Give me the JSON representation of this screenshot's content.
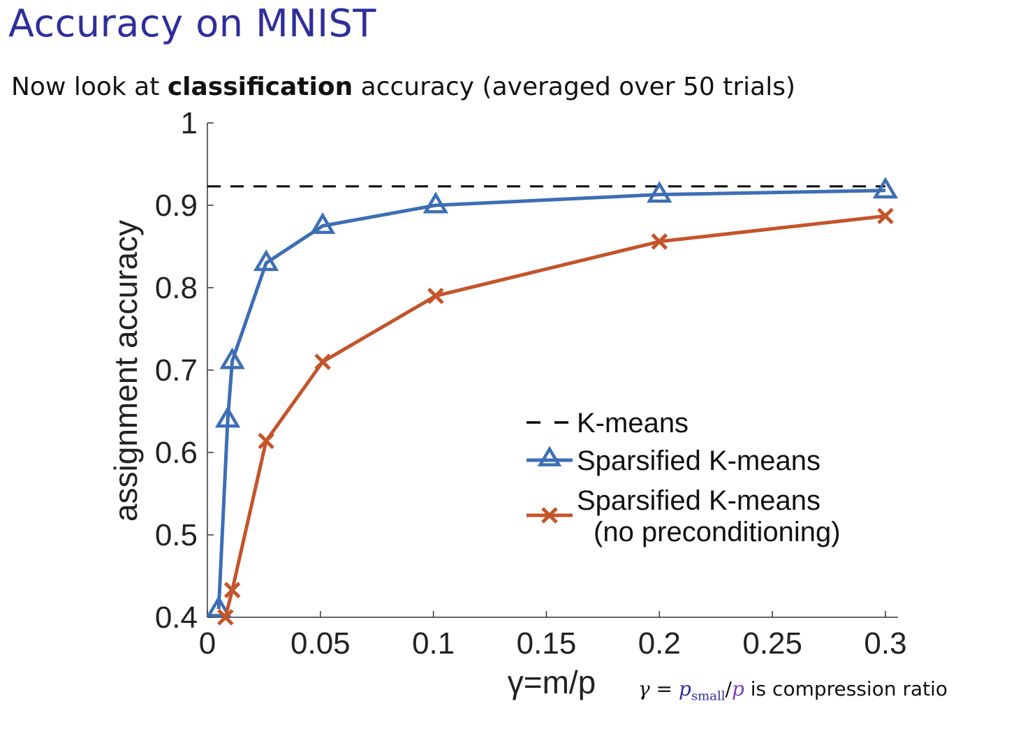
{
  "slide": {
    "title": "Accuracy on MNIST",
    "subtitle_pre": "Now look at ",
    "subtitle_bold": "classification",
    "subtitle_post": " accuracy (averaged over 50 trials)",
    "note_gamma": "γ",
    "note_eq": " = ",
    "note_p": "p",
    "note_sub": "small",
    "note_slash": "/",
    "note_p2": "p",
    "note_text": " is compression ratio"
  },
  "chart_data": {
    "type": "line",
    "xlabel": "γ=m/p",
    "ylabel": "assignment accuracy",
    "xlim": [
      0,
      0.3
    ],
    "ylim": [
      0.4,
      1
    ],
    "xticks": [
      "0",
      "0.05",
      "0.1",
      "0.15",
      "0.2",
      "0.25",
      "0.3"
    ],
    "yticks": [
      "0.4",
      "0.5",
      "0.6",
      "0.7",
      "0.8",
      "0.9",
      "1"
    ],
    "legend_position": "center-right",
    "series": [
      {
        "name": "K-means",
        "style": "dashed",
        "color": "#000000",
        "marker": "none",
        "x": [
          0,
          0.3
        ],
        "y": [
          0.923,
          0.923
        ]
      },
      {
        "name": "Sparsified K-means",
        "style": "solid",
        "color": "#3d6eb5",
        "marker": "triangle",
        "x": [
          0.005,
          0.009,
          0.011,
          0.026,
          0.051,
          0.101,
          0.2,
          0.3
        ],
        "y": [
          0.41,
          0.64,
          0.711,
          0.83,
          0.875,
          0.9,
          0.913,
          0.918
        ]
      },
      {
        "name": "Sparsified K-means",
        "name_line2": "(no preconditioning)",
        "style": "solid",
        "color": "#c4542a",
        "marker": "x",
        "x": [
          0.008,
          0.011,
          0.026,
          0.051,
          0.101,
          0.2,
          0.3
        ],
        "y": [
          0.4,
          0.433,
          0.614,
          0.71,
          0.79,
          0.856,
          0.887
        ]
      }
    ]
  }
}
